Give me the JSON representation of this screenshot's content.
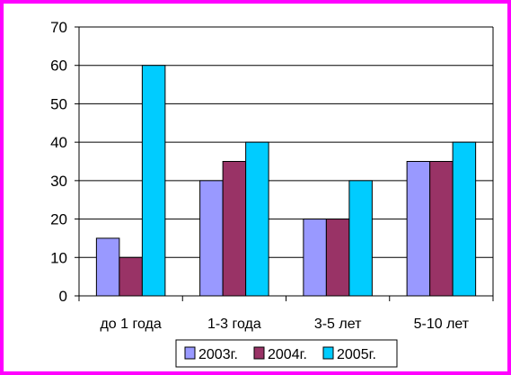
{
  "chart_data": {
    "type": "bar",
    "title": "",
    "xlabel": "",
    "ylabel": "",
    "categories": [
      "до 1 года",
      "1-3 года",
      "3-5 лет",
      "5-10 лет"
    ],
    "series": [
      {
        "name": "2003г.",
        "values": [
          15,
          30,
          20,
          35
        ],
        "color": "#9999ff"
      },
      {
        "name": "2004г.",
        "values": [
          10,
          35,
          20,
          35
        ],
        "color": "#993366"
      },
      {
        "name": "2005г.",
        "values": [
          60,
          40,
          30,
          40
        ],
        "color": "#00ccff"
      }
    ],
    "ylim": [
      0,
      70
    ],
    "yticks": [
      0,
      10,
      20,
      30,
      40,
      50,
      60,
      70
    ],
    "grid": true,
    "legend_position": "bottom-right",
    "frame_color": "#ff00ff"
  }
}
